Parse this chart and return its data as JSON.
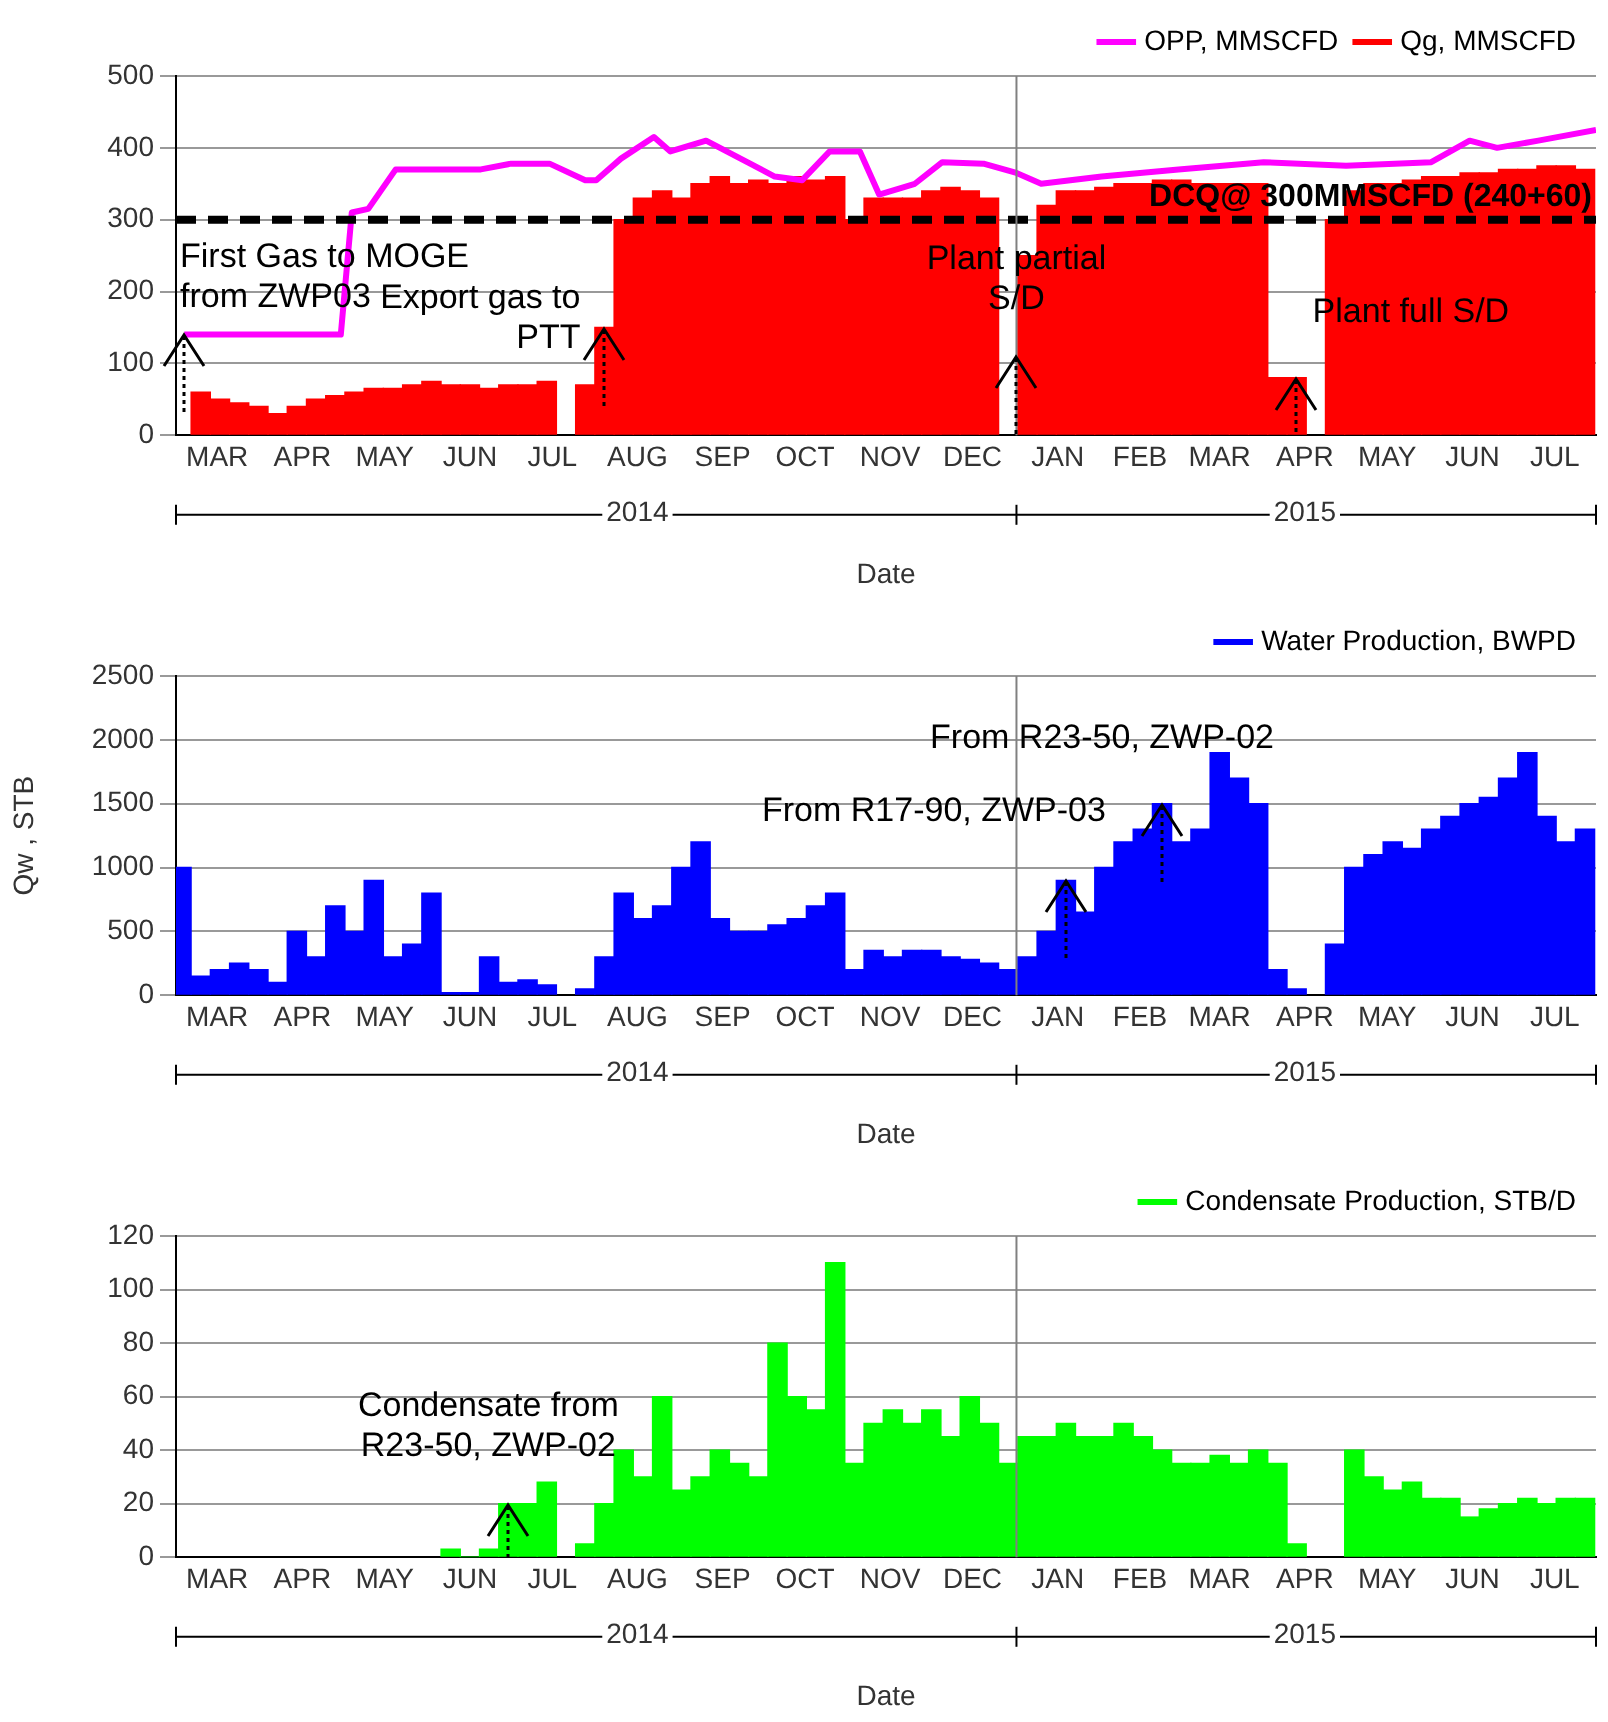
{
  "chart_data": [
    {
      "type": "bar",
      "xlabel": "Date",
      "xlim": [
        "2014-03-01",
        "2015-07-31"
      ],
      "xticks": [
        {
          "value": "2014-03-16",
          "label": "MAR"
        },
        {
          "value": "2014-04-16",
          "label": "APR"
        },
        {
          "value": "2014-05-16",
          "label": "MAY"
        },
        {
          "value": "2014-06-16",
          "label": "JUN"
        },
        {
          "value": "2014-07-16",
          "label": "JUL"
        },
        {
          "value": "2014-08-16",
          "label": "AUG"
        },
        {
          "value": "2014-09-16",
          "label": "SEP"
        },
        {
          "value": "2014-10-16",
          "label": "OCT"
        },
        {
          "value": "2014-11-16",
          "label": "NOV"
        },
        {
          "value": "2014-12-16",
          "label": "DEC"
        },
        {
          "value": "2015-01-16",
          "label": "JAN"
        },
        {
          "value": "2015-02-15",
          "label": "FEB"
        },
        {
          "value": "2015-03-16",
          "label": "MAR"
        },
        {
          "value": "2015-04-16",
          "label": "APR"
        },
        {
          "value": "2015-05-16",
          "label": "MAY"
        },
        {
          "value": "2015-06-16",
          "label": "JUN"
        },
        {
          "value": "2015-07-16",
          "label": "JUL"
        }
      ],
      "x2lim": [
        "2014-03-01",
        "2015-07-31"
      ],
      "x2ticks": [
        {
          "value": "2014-08-16",
          "label": "2014"
        },
        {
          "value": "2015-04-16",
          "label": "2015"
        }
      ],
      "ylim": [
        0,
        500
      ],
      "yticks": [
        0,
        100,
        200,
        300,
        400,
        500
      ],
      "grid": "y",
      "legend": "top right",
      "marker": "none",
      "line_style": "solid",
      "x": [
        "2014-03-10",
        "2014-03-17",
        "2014-03-24",
        "2014-03-31",
        "2014-04-07",
        "2014-04-14",
        "2014-04-21",
        "2014-04-28",
        "2014-05-05",
        "2014-05-12",
        "2014-05-19",
        "2014-05-26",
        "2014-06-02",
        "2014-06-09",
        "2014-06-16",
        "2014-06-23",
        "2014-06-30",
        "2014-07-07",
        "2014-07-14",
        "2014-07-21",
        "2014-07-28",
        "2014-08-04",
        "2014-08-11",
        "2014-08-18",
        "2014-08-25",
        "2014-09-01",
        "2014-09-08",
        "2014-09-15",
        "2014-09-22",
        "2014-09-29",
        "2014-10-06",
        "2014-10-13",
        "2014-10-20",
        "2014-10-27",
        "2014-11-03",
        "2014-11-10",
        "2014-11-17",
        "2014-11-24",
        "2014-12-01",
        "2014-12-08",
        "2014-12-15",
        "2014-12-22",
        "2014-12-29",
        "2015-01-05",
        "2015-01-12",
        "2015-01-19",
        "2015-01-26",
        "2015-02-02",
        "2015-02-09",
        "2015-02-16",
        "2015-02-23",
        "2015-03-02",
        "2015-03-09",
        "2015-03-16",
        "2015-03-23",
        "2015-03-30",
        "2015-04-06",
        "2015-04-13",
        "2015-04-20",
        "2015-04-27",
        "2015-05-04",
        "2015-05-11",
        "2015-05-18",
        "2015-05-25",
        "2015-06-01",
        "2015-06-08",
        "2015-06-15",
        "2015-06-22",
        "2015-06-29",
        "2015-07-06",
        "2015-07-13",
        "2015-07-20",
        "2015-07-27"
      ],
      "series": [
        {
          "name": "OPP, MMSCFD",
          "type": "line",
          "color": "#ff00ff",
          "x": [
            "2014-03-04",
            "2014-04-30",
            "2014-05-04",
            "2014-05-10",
            "2014-05-20",
            "2014-06-20",
            "2014-07-01",
            "2014-07-15",
            "2014-07-28",
            "2014-08-01",
            "2014-08-10",
            "2014-08-22",
            "2014-08-28",
            "2014-09-10",
            "2014-09-25",
            "2014-10-05",
            "2014-10-15",
            "2014-10-25",
            "2014-11-05",
            "2014-11-12",
            "2014-11-25",
            "2014-12-05",
            "2014-12-20",
            "2015-01-01",
            "2015-01-10",
            "2015-02-01",
            "2015-03-01",
            "2015-04-01",
            "2015-05-01",
            "2015-06-01",
            "2015-06-15",
            "2015-06-25",
            "2015-07-10",
            "2015-07-31"
          ],
          "values": [
            140,
            140,
            310,
            315,
            370,
            370,
            378,
            378,
            355,
            355,
            385,
            415,
            395,
            410,
            380,
            360,
            355,
            395,
            395,
            335,
            350,
            380,
            378,
            365,
            350,
            360,
            370,
            380,
            375,
            380,
            410,
            400,
            410,
            425
          ]
        },
        {
          "name": "Qg, MMSCFD",
          "color": "#ff0000",
          "values": [
            60,
            50,
            45,
            40,
            30,
            40,
            50,
            55,
            60,
            65,
            65,
            70,
            75,
            70,
            70,
            65,
            70,
            70,
            75,
            null,
            70,
            150,
            300,
            330,
            340,
            330,
            350,
            360,
            350,
            355,
            350,
            360,
            355,
            360,
            300,
            330,
            330,
            330,
            340,
            345,
            340,
            330,
            null,
            250,
            320,
            340,
            340,
            345,
            350,
            350,
            355,
            355,
            350,
            350,
            350,
            350,
            80,
            80,
            null,
            300,
            340,
            350,
            350,
            355,
            360,
            360,
            365,
            365,
            370,
            370,
            375,
            375,
            370
          ]
        }
      ],
      "ref_lines": [
        {
          "axis": "y",
          "value": 300,
          "label": "DCQ@ 300MMSCFD (240+60)",
          "color": "#000000",
          "line_style": "dashed"
        },
        {
          "axis": "x",
          "value": "2015-01-01",
          "color": "#808080"
        }
      ],
      "annotations": [
        {
          "text": "First Gas to MOGE\nfrom ZWP03",
          "x": "2014-03-04",
          "y": 140
        },
        {
          "text": "Export gas to\nPTT",
          "x": "2014-08-04",
          "y": 150
        },
        {
          "text": "Plant partial\nS/D",
          "x": "2015-01-01",
          "y": 110
        },
        {
          "text": "Plant full S/D",
          "x": "2015-04-13",
          "y": 80
        }
      ]
    },
    {
      "type": "bar",
      "xlabel": "Date",
      "ylabel": "Qw , STB",
      "xlim": [
        "2014-03-01",
        "2015-07-31"
      ],
      "xticks": [
        {
          "value": "2014-03-16",
          "label": "MAR"
        },
        {
          "value": "2014-04-16",
          "label": "APR"
        },
        {
          "value": "2014-05-16",
          "label": "MAY"
        },
        {
          "value": "2014-06-16",
          "label": "JUN"
        },
        {
          "value": "2014-07-16",
          "label": "JUL"
        },
        {
          "value": "2014-08-16",
          "label": "AUG"
        },
        {
          "value": "2014-09-16",
          "label": "SEP"
        },
        {
          "value": "2014-10-16",
          "label": "OCT"
        },
        {
          "value": "2014-11-16",
          "label": "NOV"
        },
        {
          "value": "2014-12-16",
          "label": "DEC"
        },
        {
          "value": "2015-01-16",
          "label": "JAN"
        },
        {
          "value": "2015-02-15",
          "label": "FEB"
        },
        {
          "value": "2015-03-16",
          "label": "MAR"
        },
        {
          "value": "2015-04-16",
          "label": "APR"
        },
        {
          "value": "2015-05-16",
          "label": "MAY"
        },
        {
          "value": "2015-06-16",
          "label": "JUN"
        },
        {
          "value": "2015-07-16",
          "label": "JUL"
        }
      ],
      "x2lim": [
        "2014-03-01",
        "2015-07-31"
      ],
      "x2ticks": [
        {
          "value": "2014-08-16",
          "label": "2014"
        },
        {
          "value": "2015-04-16",
          "label": "2015"
        }
      ],
      "ylim": [
        0,
        2500
      ],
      "yticks": [
        0,
        500,
        1000,
        1500,
        2000,
        2500
      ],
      "grid": "y",
      "legend": "top right",
      "x": [
        "2014-03-03",
        "2014-03-10",
        "2014-03-17",
        "2014-03-24",
        "2014-03-31",
        "2014-04-07",
        "2014-04-14",
        "2014-04-21",
        "2014-04-28",
        "2014-05-05",
        "2014-05-12",
        "2014-05-19",
        "2014-05-26",
        "2014-06-02",
        "2014-06-09",
        "2014-06-16",
        "2014-06-23",
        "2014-06-30",
        "2014-07-07",
        "2014-07-14",
        "2014-07-21",
        "2014-07-28",
        "2014-08-04",
        "2014-08-11",
        "2014-08-18",
        "2014-08-25",
        "2014-09-01",
        "2014-09-08",
        "2014-09-15",
        "2014-09-22",
        "2014-09-29",
        "2014-10-06",
        "2014-10-13",
        "2014-10-20",
        "2014-10-27",
        "2014-11-03",
        "2014-11-10",
        "2014-11-17",
        "2014-11-24",
        "2014-12-01",
        "2014-12-08",
        "2014-12-15",
        "2014-12-22",
        "2014-12-29",
        "2015-01-05",
        "2015-01-12",
        "2015-01-19",
        "2015-01-26",
        "2015-02-02",
        "2015-02-09",
        "2015-02-16",
        "2015-02-23",
        "2015-03-02",
        "2015-03-09",
        "2015-03-16",
        "2015-03-23",
        "2015-03-30",
        "2015-04-06",
        "2015-04-13",
        "2015-04-20",
        "2015-04-27",
        "2015-05-04",
        "2015-05-11",
        "2015-05-18",
        "2015-05-25",
        "2015-06-01",
        "2015-06-08",
        "2015-06-15",
        "2015-06-22",
        "2015-06-29",
        "2015-07-06",
        "2015-07-13",
        "2015-07-20",
        "2015-07-27"
      ],
      "series": [
        {
          "name": "Water Production, BWPD",
          "color": "#0000ff",
          "values": [
            1000,
            150,
            200,
            250,
            200,
            100,
            500,
            300,
            700,
            500,
            900,
            300,
            400,
            800,
            20,
            20,
            300,
            100,
            120,
            80,
            null,
            50,
            300,
            800,
            600,
            700,
            1000,
            1200,
            600,
            500,
            500,
            550,
            600,
            700,
            800,
            200,
            350,
            300,
            350,
            350,
            300,
            280,
            250,
            200,
            300,
            500,
            900,
            650,
            1000,
            1200,
            1300,
            1500,
            1200,
            1300,
            1900,
            1700,
            1500,
            200,
            50,
            null,
            400,
            1000,
            1100,
            1200,
            1150,
            1300,
            1400,
            1500,
            1550,
            1700,
            1900,
            1400,
            1200,
            1300
          ]
        }
      ],
      "ref_lines": [
        {
          "axis": "x",
          "value": "2015-01-01",
          "color": "#808080"
        }
      ],
      "annotations": [
        {
          "text": "From R17-90, ZWP-03",
          "x": "2015-01-19",
          "y": 900
        },
        {
          "text": "From R23-50, ZWP-02",
          "x": "2015-02-23",
          "y": 1500
        }
      ]
    },
    {
      "type": "bar",
      "xlabel": "Date",
      "xlim": [
        "2014-03-01",
        "2015-07-31"
      ],
      "xticks": [
        {
          "value": "2014-03-16",
          "label": "MAR"
        },
        {
          "value": "2014-04-16",
          "label": "APR"
        },
        {
          "value": "2014-05-16",
          "label": "MAY"
        },
        {
          "value": "2014-06-16",
          "label": "JUN"
        },
        {
          "value": "2014-07-16",
          "label": "JUL"
        },
        {
          "value": "2014-08-16",
          "label": "AUG"
        },
        {
          "value": "2014-09-16",
          "label": "SEP"
        },
        {
          "value": "2014-10-16",
          "label": "OCT"
        },
        {
          "value": "2014-11-16",
          "label": "NOV"
        },
        {
          "value": "2014-12-16",
          "label": "DEC"
        },
        {
          "value": "2015-01-16",
          "label": "JAN"
        },
        {
          "value": "2015-02-15",
          "label": "FEB"
        },
        {
          "value": "2015-03-16",
          "label": "MAR"
        },
        {
          "value": "2015-04-16",
          "label": "APR"
        },
        {
          "value": "2015-05-16",
          "label": "MAY"
        },
        {
          "value": "2015-06-16",
          "label": "JUN"
        },
        {
          "value": "2015-07-16",
          "label": "JUL"
        }
      ],
      "x2lim": [
        "2014-03-01",
        "2015-07-31"
      ],
      "x2ticks": [
        {
          "value": "2014-08-16",
          "label": "2014"
        },
        {
          "value": "2015-04-16",
          "label": "2015"
        }
      ],
      "ylim": [
        0,
        120
      ],
      "yticks": [
        0,
        20,
        40,
        60,
        80,
        100,
        120
      ],
      "grid": "y",
      "legend": "top right",
      "x": [
        "2014-06-09",
        "2014-06-16",
        "2014-06-23",
        "2014-06-30",
        "2014-07-07",
        "2014-07-14",
        "2014-07-21",
        "2014-07-28",
        "2014-08-04",
        "2014-08-11",
        "2014-08-18",
        "2014-08-25",
        "2014-09-01",
        "2014-09-08",
        "2014-09-15",
        "2014-09-22",
        "2014-09-29",
        "2014-10-06",
        "2014-10-13",
        "2014-10-20",
        "2014-10-27",
        "2014-11-03",
        "2014-11-10",
        "2014-11-17",
        "2014-11-24",
        "2014-12-01",
        "2014-12-08",
        "2014-12-15",
        "2014-12-22",
        "2014-12-29",
        "2015-01-05",
        "2015-01-12",
        "2015-01-19",
        "2015-01-26",
        "2015-02-02",
        "2015-02-09",
        "2015-02-16",
        "2015-02-23",
        "2015-03-02",
        "2015-03-09",
        "2015-03-16",
        "2015-03-23",
        "2015-03-30",
        "2015-04-06",
        "2015-04-13",
        "2015-04-20",
        "2015-04-27",
        "2015-05-04",
        "2015-05-11",
        "2015-05-18",
        "2015-05-25",
        "2015-06-01",
        "2015-06-08",
        "2015-06-15",
        "2015-06-22",
        "2015-06-29",
        "2015-07-06",
        "2015-07-13",
        "2015-07-20",
        "2015-07-27"
      ],
      "series": [
        {
          "name": "Condensate Production, STB/D",
          "color": "#00ff00",
          "values": [
            3,
            0,
            3,
            20,
            20,
            28,
            null,
            5,
            20,
            40,
            30,
            60,
            25,
            30,
            40,
            35,
            30,
            80,
            60,
            55,
            110,
            35,
            50,
            55,
            50,
            55,
            45,
            60,
            50,
            35,
            45,
            45,
            50,
            45,
            45,
            50,
            45,
            40,
            35,
            35,
            38,
            35,
            40,
            35,
            5,
            null,
            null,
            40,
            30,
            25,
            28,
            22,
            22,
            15,
            18,
            20,
            22,
            20,
            22,
            22
          ]
        }
      ],
      "ref_lines": [
        {
          "axis": "x",
          "value": "2015-01-01",
          "color": "#808080"
        }
      ],
      "annotations": [
        {
          "text": "Condensate from\nR23-50, ZWP-02",
          "x": "2014-06-30",
          "y": 20
        }
      ]
    }
  ]
}
